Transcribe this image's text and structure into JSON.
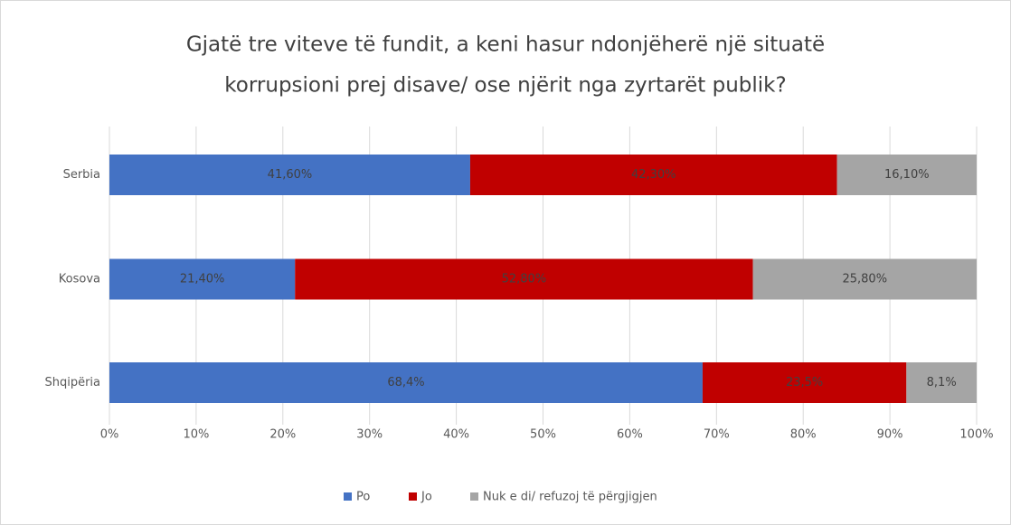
{
  "chart_data": {
    "type": "bar",
    "orientation": "horizontal",
    "stacked": true,
    "title": [
      "Gjatë tre viteve të fundit, a keni hasur ndonjëherë një situatë",
      "korrupsioni prej disave/ ose njërit nga zyrtarët publik?"
    ],
    "categories": [
      "Serbia",
      "Kosova",
      "Shqipëria"
    ],
    "series": [
      {
        "name": "Po",
        "color": "#4472c4",
        "values": [
          41.6,
          21.4,
          68.4
        ],
        "value_labels": [
          "41,60%",
          "21,40%",
          "68,4%"
        ]
      },
      {
        "name": "Jo",
        "color": "#c00000",
        "values": [
          42.3,
          52.8,
          23.5
        ],
        "value_labels": [
          "42,30%",
          "52,80%",
          "23,5%"
        ]
      },
      {
        "name": "Nuk e di/ refuzoj të përgjigjen",
        "color": "#a5a5a5",
        "values": [
          16.1,
          25.8,
          8.1
        ],
        "value_labels": [
          "16,10%",
          "25,80%",
          "8,1%"
        ]
      }
    ],
    "xlim": [
      0,
      100
    ],
    "xticks": [
      {
        "value": 0,
        "label": "0%"
      },
      {
        "value": 10,
        "label": "10%"
      },
      {
        "value": 20,
        "label": "20%"
      },
      {
        "value": 30,
        "label": "30%"
      },
      {
        "value": 40,
        "label": "40%"
      },
      {
        "value": 50,
        "label": "50%"
      },
      {
        "value": 60,
        "label": "60%"
      },
      {
        "value": 70,
        "label": "70%"
      },
      {
        "value": 80,
        "label": "80%"
      },
      {
        "value": 90,
        "label": "90%"
      },
      {
        "value": 100,
        "label": "100%"
      }
    ],
    "grid": true,
    "legend": "bottom"
  }
}
